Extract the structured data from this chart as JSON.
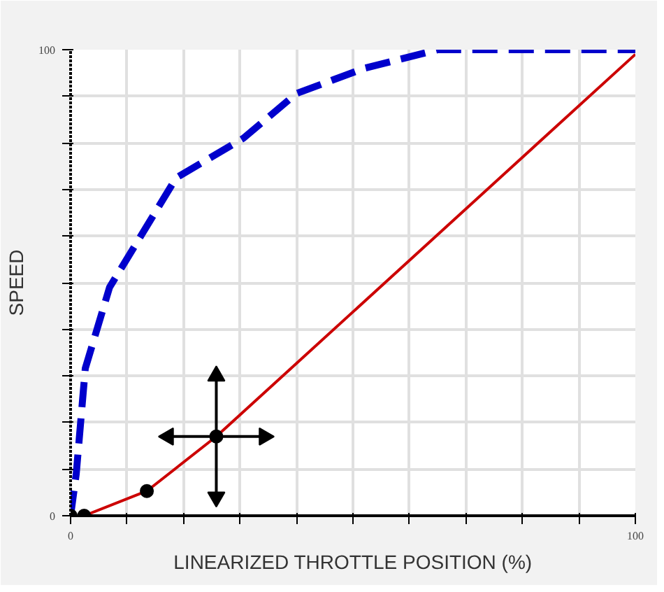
{
  "chart_data": {
    "type": "line",
    "xlabel": "LINEARIZED THROTTLE POSITION (%)",
    "ylabel": "SPEED",
    "xlim": [
      0,
      100
    ],
    "ylim": [
      0,
      100
    ],
    "xticks": [
      {
        "value": 0,
        "label": "0"
      },
      {
        "value": 10,
        "label": null
      },
      {
        "value": 20,
        "label": null
      },
      {
        "value": 30,
        "label": null
      },
      {
        "value": 40,
        "label": null
      },
      {
        "value": 50,
        "label": null
      },
      {
        "value": 60,
        "label": null
      },
      {
        "value": 70,
        "label": null
      },
      {
        "value": 80,
        "label": null
      },
      {
        "value": 90,
        "label": null
      },
      {
        "value": 100,
        "label": "100"
      }
    ],
    "yticks": [
      {
        "value": 0,
        "label": "0"
      },
      {
        "value": 10,
        "label": null
      },
      {
        "value": 20,
        "label": null
      },
      {
        "value": 30,
        "label": null
      },
      {
        "value": 40,
        "label": null
      },
      {
        "value": 50,
        "label": null
      },
      {
        "value": 60,
        "label": null
      },
      {
        "value": 70,
        "label": null
      },
      {
        "value": 80,
        "label": null
      },
      {
        "value": 90,
        "label": null
      },
      {
        "value": 100,
        "label": "100"
      }
    ],
    "grid": true,
    "series": [
      {
        "color": "#cc0000",
        "line_style": "solid",
        "x": [
          0,
          2.4,
          13.5,
          25.8,
          100
        ],
        "values": [
          0,
          0,
          5.3,
          17,
          99
        ]
      },
      {
        "color": "#0000cc",
        "line_style": "dashed",
        "x": [
          0,
          1,
          2.6,
          6.9,
          18.7,
          30.6,
          40,
          52,
          65,
          100
        ],
        "values": [
          0,
          9,
          31.6,
          49,
          72.5,
          81,
          90.6,
          96,
          100,
          100
        ]
      },
      {
        "type": "scatter",
        "color": "#000000",
        "marker": "circle",
        "x": [
          0,
          2.4,
          13.5,
          25.8
        ],
        "values": [
          0,
          0,
          5.3,
          17
        ]
      }
    ]
  }
}
